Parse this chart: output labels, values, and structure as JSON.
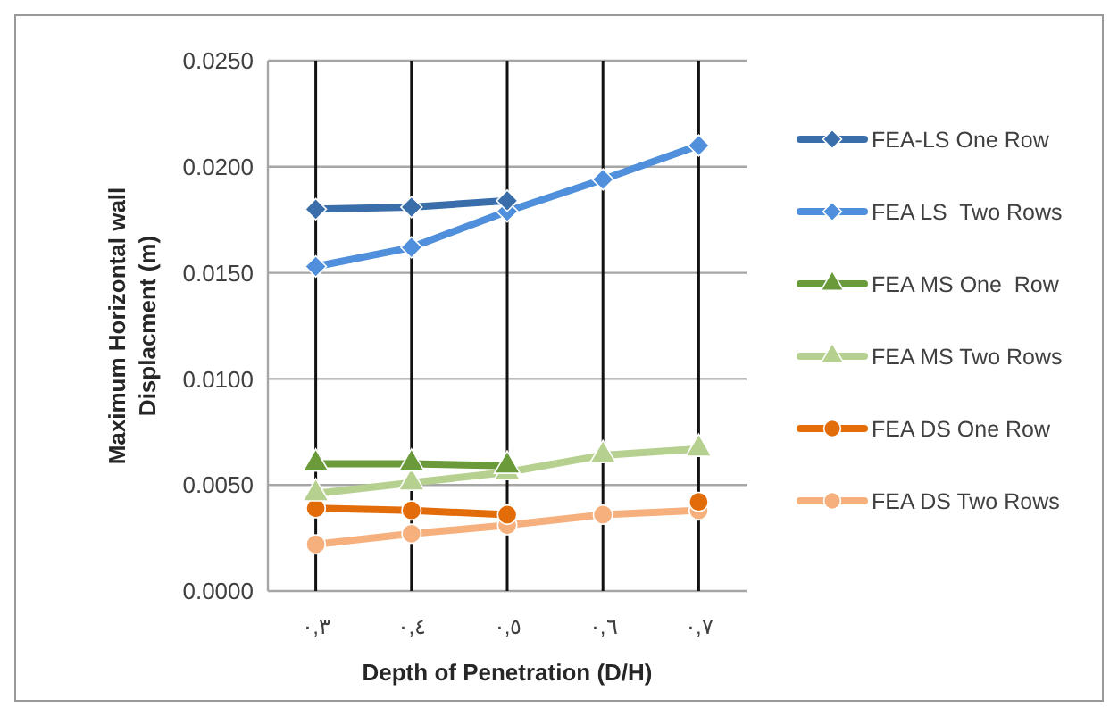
{
  "chart_data": {
    "type": "line",
    "xlabel": "Depth of Penetration (D/H)",
    "ylabel": "Maximum Horizontal wall Displacment (m)",
    "categories": [
      "٠,٣",
      "٠,٤",
      "٠,٥",
      "٠,٦",
      "٠,٧"
    ],
    "ylim": [
      0,
      0.025
    ],
    "yticks": [
      {
        "value": 0,
        "label": "0.0000"
      },
      {
        "value": 0.005,
        "label": "0.0050"
      },
      {
        "value": 0.01,
        "label": "0.0100"
      },
      {
        "value": 0.015,
        "label": "0.0150"
      },
      {
        "value": 0.02,
        "label": "0.0200"
      },
      {
        "value": 0.025,
        "label": "0.0250"
      }
    ],
    "grid": true,
    "legend": "right",
    "series": [
      {
        "name": "FEA-LS One Row",
        "color": "#3a6eaa",
        "marker": "diamond",
        "values": [
          0.018,
          0.0181,
          0.0184,
          null,
          null
        ]
      },
      {
        "name": "FEA LS  Two Rows",
        "color": "#4f8fdb",
        "marker": "diamond",
        "values": [
          0.0153,
          0.0162,
          0.0179,
          0.0194,
          0.021
        ]
      },
      {
        "name": "FEA MS One  Row",
        "color": "#6a9a3a",
        "marker": "triangle",
        "values": [
          0.006,
          0.006,
          0.0059,
          null,
          null
        ]
      },
      {
        "name": "FEA MS Two Rows",
        "color": "#b5d08f",
        "marker": "triangle",
        "values": [
          0.0046,
          0.0051,
          0.0056,
          0.0064,
          0.0067
        ]
      },
      {
        "name": "FEA DS One Row",
        "color": "#e36c0a",
        "marker": "circle",
        "values": [
          0.0039,
          0.0038,
          0.0036,
          null,
          0.0042
        ]
      },
      {
        "name": "FEA DS Two Rows",
        "color": "#f6b07e",
        "marker": "circle",
        "values": [
          0.0022,
          0.0027,
          0.0031,
          0.0036,
          0.0038
        ]
      }
    ]
  }
}
